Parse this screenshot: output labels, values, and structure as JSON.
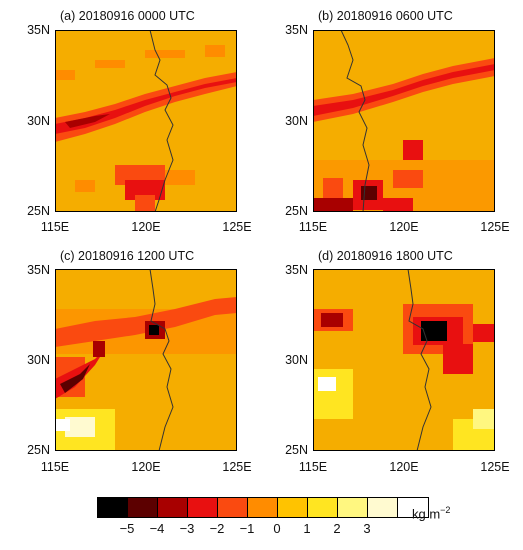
{
  "panels": [
    {
      "id": "a",
      "title": "(a) 20180916 0000 UTC"
    },
    {
      "id": "b",
      "title": "(b) 20180916 0600 UTC"
    },
    {
      "id": "c",
      "title": "(c) 20180916 1200 UTC"
    },
    {
      "id": "d",
      "title": "(d) 20180916 1800 UTC"
    }
  ],
  "axes": {
    "y_ticks": [
      "35N",
      "30N",
      "25N"
    ],
    "x_ticks": [
      "115E",
      "120E",
      "125E"
    ],
    "lon_range": [
      115,
      125
    ],
    "lat_range": [
      25,
      35
    ]
  },
  "colorbar": {
    "labels": [
      "−5",
      "−4",
      "−3",
      "−2",
      "−1",
      "0",
      "1",
      "2",
      "3"
    ],
    "colors": [
      "#000000",
      "#5c0000",
      "#a80000",
      "#e81010",
      "#fa4a10",
      "#ff8c00",
      "#ffc300",
      "#ffe521",
      "#fff780",
      "#fffad0",
      "#ffffff"
    ],
    "units_text": "kg m",
    "units_exp": "−2"
  },
  "background_color": "#f5ad00"
}
